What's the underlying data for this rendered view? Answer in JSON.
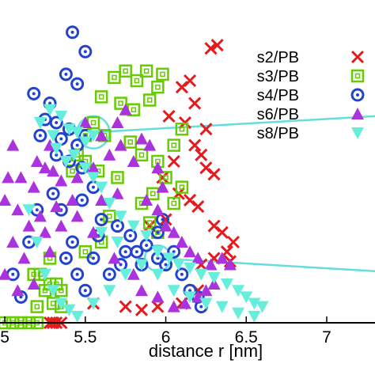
{
  "chart_data": {
    "type": "scatter",
    "title": "",
    "xlabel": "distance r [nm]",
    "ylabel": "",
    "xlim": [
      4.97,
      7.3
    ],
    "ylim": [
      0,
      1.0
    ],
    "x_ticks": [
      "5",
      "5.5",
      "6",
      "6.5",
      "7"
    ],
    "x_tick_values": [
      5.0,
      5.5,
      6.0,
      6.5,
      7.0
    ],
    "grid": false,
    "legend_position": "top-right",
    "series": [
      {
        "name": "s2/PB",
        "marker": "x",
        "color": "#e41a1c",
        "points": [
          [
            6.28,
            0.85
          ],
          [
            6.32,
            0.86
          ],
          [
            6.15,
            0.75
          ],
          [
            6.1,
            0.73
          ],
          [
            6.02,
            0.64
          ],
          [
            6.12,
            0.62
          ],
          [
            6.18,
            0.55
          ],
          [
            6.22,
            0.52
          ],
          [
            6.25,
            0.48
          ],
          [
            6.3,
            0.46
          ],
          [
            6.05,
            0.5
          ],
          [
            5.98,
            0.45
          ],
          [
            6.08,
            0.4
          ],
          [
            6.15,
            0.38
          ],
          [
            6.2,
            0.36
          ],
          [
            6.3,
            0.3
          ],
          [
            6.35,
            0.28
          ],
          [
            6.38,
            0.22
          ],
          [
            6.42,
            0.25
          ],
          [
            6.4,
            0.19
          ],
          [
            6.3,
            0.2
          ],
          [
            6.22,
            0.18
          ],
          [
            6.2,
            0.1
          ],
          [
            6.1,
            0.06
          ],
          [
            5.95,
            0.05
          ],
          [
            5.85,
            0.04
          ],
          [
            5.75,
            0.05
          ],
          [
            5.55,
            0.06
          ],
          [
            5.35,
            0.0
          ],
          [
            5.3,
            0.0
          ],
          [
            5.28,
            0.0
          ],
          [
            5.32,
            0.0
          ],
          [
            5.9,
            0.3
          ],
          [
            6.0,
            0.32
          ],
          [
            6.25,
            0.6
          ],
          [
            6.18,
            0.68
          ]
        ]
      },
      {
        "name": "s3/PB",
        "marker": "square",
        "color": "#66cc00",
        "points": [
          [
            5.75,
            0.78
          ],
          [
            5.68,
            0.76
          ],
          [
            5.82,
            0.75
          ],
          [
            5.88,
            0.78
          ],
          [
            5.98,
            0.77
          ],
          [
            5.95,
            0.73
          ],
          [
            5.6,
            0.7
          ],
          [
            5.72,
            0.68
          ],
          [
            5.8,
            0.66
          ],
          [
            5.9,
            0.69
          ],
          [
            5.55,
            0.62
          ],
          [
            5.62,
            0.58
          ],
          [
            5.78,
            0.56
          ],
          [
            5.85,
            0.52
          ],
          [
            5.95,
            0.5
          ],
          [
            6.05,
            0.55
          ],
          [
            5.5,
            0.5
          ],
          [
            5.45,
            0.52
          ],
          [
            5.42,
            0.47
          ],
          [
            5.58,
            0.47
          ],
          [
            6.0,
            0.45
          ],
          [
            6.1,
            0.42
          ],
          [
            5.92,
            0.4
          ],
          [
            5.85,
            0.37
          ],
          [
            6.05,
            0.37
          ],
          [
            5.9,
            0.31
          ],
          [
            5.95,
            0.28
          ],
          [
            5.28,
            0.2
          ],
          [
            5.22,
            0.15
          ],
          [
            5.25,
            0.1
          ],
          [
            5.28,
            0.12
          ],
          [
            5.32,
            0.12
          ],
          [
            5.35,
            0.1
          ],
          [
            5.3,
            0.06
          ],
          [
            5.35,
            0.05
          ],
          [
            5.2,
            0.05
          ],
          [
            5.18,
            0.15
          ],
          [
            5.0,
            0.0
          ],
          [
            5.05,
            0.0
          ],
          [
            5.1,
            0.0
          ],
          [
            5.15,
            0.0
          ],
          [
            5.2,
            0.0
          ],
          [
            5.5,
            0.22
          ],
          [
            5.6,
            0.25
          ],
          [
            5.65,
            0.33
          ],
          [
            6.1,
            0.6
          ],
          [
            5.7,
            0.45
          ],
          [
            5.5,
            0.58
          ]
        ]
      },
      {
        "name": "s4/PB",
        "marker": "circle",
        "color": "#2244cc",
        "points": [
          [
            5.42,
            0.9
          ],
          [
            5.5,
            0.84
          ],
          [
            5.38,
            0.77
          ],
          [
            5.45,
            0.74
          ],
          [
            5.18,
            0.71
          ],
          [
            5.28,
            0.68
          ],
          [
            5.25,
            0.63
          ],
          [
            5.32,
            0.62
          ],
          [
            5.22,
            0.58
          ],
          [
            5.35,
            0.57
          ],
          [
            5.4,
            0.6
          ],
          [
            5.32,
            0.52
          ],
          [
            5.4,
            0.5
          ],
          [
            5.45,
            0.55
          ],
          [
            5.5,
            0.58
          ],
          [
            5.48,
            0.48
          ],
          [
            5.3,
            0.4
          ],
          [
            5.35,
            0.35
          ],
          [
            5.48,
            0.38
          ],
          [
            5.55,
            0.42
          ],
          [
            5.6,
            0.32
          ],
          [
            5.58,
            0.27
          ],
          [
            5.7,
            0.3
          ],
          [
            5.78,
            0.27
          ],
          [
            5.82,
            0.22
          ],
          [
            5.75,
            0.22
          ],
          [
            5.88,
            0.24
          ],
          [
            5.95,
            0.2
          ],
          [
            6.0,
            0.18
          ],
          [
            5.85,
            0.18
          ],
          [
            5.65,
            0.15
          ],
          [
            5.55,
            0.2
          ],
          [
            5.42,
            0.25
          ],
          [
            5.38,
            0.2
          ],
          [
            5.15,
            0.25
          ],
          [
            5.05,
            0.15
          ],
          [
            5.1,
            0.08
          ],
          [
            6.05,
            0.22
          ],
          [
            6.1,
            0.15
          ],
          [
            6.15,
            0.1
          ],
          [
            6.2,
            0.08
          ],
          [
            6.22,
            0.05
          ],
          [
            5.95,
            0.28
          ],
          [
            5.98,
            0.32
          ],
          [
            5.2,
            0.35
          ],
          [
            5.45,
            0.15
          ],
          [
            5.5,
            0.1
          ],
          [
            5.72,
            0.18
          ]
        ]
      },
      {
        "name": "s6/PB",
        "marker": "triangle-up",
        "color": "#aa33dd",
        "points": [
          [
            5.05,
            0.55
          ],
          [
            5.1,
            0.45
          ],
          [
            5.18,
            0.42
          ],
          [
            5.0,
            0.38
          ],
          [
            5.08,
            0.35
          ],
          [
            5.15,
            0.3
          ],
          [
            5.22,
            0.33
          ],
          [
            5.25,
            0.48
          ],
          [
            5.3,
            0.47
          ],
          [
            5.2,
            0.5
          ],
          [
            5.28,
            0.55
          ],
          [
            5.35,
            0.44
          ],
          [
            5.45,
            0.45
          ],
          [
            5.55,
            0.48
          ],
          [
            5.65,
            0.52
          ],
          [
            5.72,
            0.55
          ],
          [
            5.6,
            0.58
          ],
          [
            5.5,
            0.62
          ],
          [
            5.7,
            0.62
          ],
          [
            5.75,
            0.66
          ],
          [
            5.85,
            0.57
          ],
          [
            5.8,
            0.5
          ],
          [
            5.9,
            0.55
          ],
          [
            5.95,
            0.48
          ],
          [
            5.98,
            0.42
          ],
          [
            5.05,
            0.25
          ],
          [
            5.12,
            0.2
          ],
          [
            5.0,
            0.15
          ],
          [
            5.08,
            0.1
          ],
          [
            5.18,
            0.12
          ],
          [
            5.25,
            0.28
          ],
          [
            5.35,
            0.3
          ],
          [
            5.45,
            0.33
          ],
          [
            5.6,
            0.38
          ],
          [
            5.7,
            0.4
          ],
          [
            5.88,
            0.38
          ],
          [
            5.95,
            0.35
          ],
          [
            6.0,
            0.3
          ],
          [
            6.05,
            0.28
          ],
          [
            6.1,
            0.25
          ],
          [
            6.15,
            0.22
          ],
          [
            6.2,
            0.2
          ],
          [
            6.28,
            0.18
          ],
          [
            6.35,
            0.2
          ],
          [
            6.4,
            0.18
          ],
          [
            6.3,
            0.12
          ],
          [
            6.25,
            0.1
          ],
          [
            6.2,
            0.08
          ],
          [
            6.12,
            0.06
          ],
          [
            6.05,
            0.05
          ],
          [
            5.95,
            0.08
          ],
          [
            5.85,
            0.1
          ],
          [
            5.8,
            0.15
          ],
          [
            5.68,
            0.2
          ],
          [
            5.55,
            0.28
          ],
          [
            5.42,
            0.38
          ],
          [
            5.32,
            0.36
          ],
          [
            5.02,
            0.45
          ],
          [
            5.28,
            0.22
          ]
        ]
      },
      {
        "name": "s8/PB",
        "marker": "triangle-down",
        "color": "#66eedd",
        "points": [
          [
            5.22,
            0.62
          ],
          [
            5.28,
            0.66
          ],
          [
            5.35,
            0.64
          ],
          [
            5.4,
            0.6
          ],
          [
            5.45,
            0.59
          ],
          [
            5.5,
            0.56
          ],
          [
            5.55,
            0.58
          ],
          [
            5.3,
            0.58
          ],
          [
            5.32,
            0.54
          ],
          [
            5.38,
            0.5
          ],
          [
            5.43,
            0.52
          ],
          [
            5.5,
            0.48
          ],
          [
            5.55,
            0.45
          ],
          [
            5.6,
            0.42
          ],
          [
            5.65,
            0.37
          ],
          [
            5.72,
            0.33
          ],
          [
            5.8,
            0.3
          ],
          [
            5.88,
            0.27
          ],
          [
            5.95,
            0.22
          ],
          [
            6.02,
            0.2
          ],
          [
            6.08,
            0.18
          ],
          [
            6.15,
            0.17
          ],
          [
            6.22,
            0.15
          ],
          [
            6.3,
            0.14
          ],
          [
            6.38,
            0.12
          ],
          [
            6.45,
            0.1
          ],
          [
            6.5,
            0.08
          ],
          [
            6.55,
            0.06
          ],
          [
            6.6,
            0.05
          ],
          [
            5.15,
            0.35
          ],
          [
            5.2,
            0.25
          ],
          [
            5.25,
            0.15
          ],
          [
            5.3,
            0.1
          ],
          [
            5.35,
            0.06
          ],
          [
            5.4,
            0.04
          ],
          [
            5.45,
            0.02
          ],
          [
            5.55,
            0.06
          ],
          [
            5.65,
            0.1
          ],
          [
            5.75,
            0.15
          ],
          [
            5.85,
            0.18
          ],
          [
            5.95,
            0.15
          ],
          [
            6.05,
            0.1
          ],
          [
            6.15,
            0.08
          ],
          [
            6.25,
            0.06
          ],
          [
            6.35,
            0.05
          ],
          [
            6.45,
            0.03
          ],
          [
            6.55,
            0.02
          ],
          [
            5.6,
            0.28
          ],
          [
            5.7,
            0.25
          ]
        ]
      }
    ],
    "annotations": {
      "circles": [
        {
          "cx": 5.55,
          "cy": 0.59,
          "r": 0.1,
          "color": "#66dddd"
        },
        {
          "cx": 5.95,
          "cy": 0.2,
          "r": 0.08,
          "color": "#66dddd"
        }
      ],
      "lines": [
        {
          "from": [
            5.55,
            0.59
          ],
          "to": [
            7.3,
            0.64
          ],
          "color": "#66dddd"
        },
        {
          "from": [
            5.95,
            0.2
          ],
          "to": [
            7.3,
            0.16
          ],
          "color": "#66dddd"
        }
      ]
    }
  }
}
